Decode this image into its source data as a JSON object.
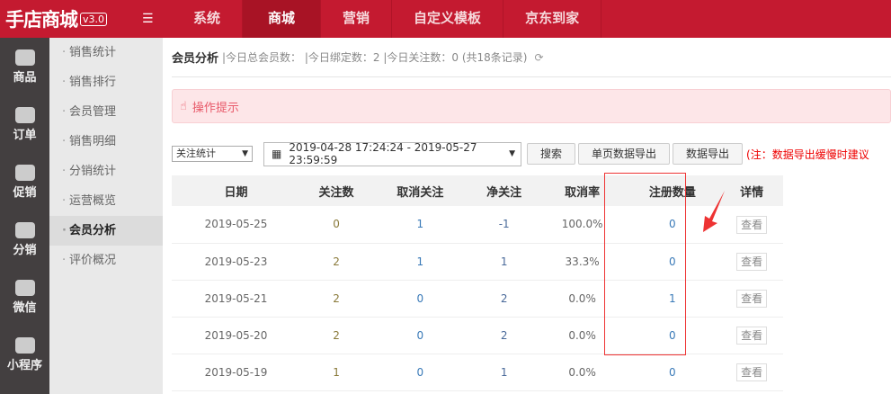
{
  "app": {
    "logo": "手店商城",
    "version": "v3.0"
  },
  "topnav": [
    "系统",
    "商城",
    "营销",
    "自定义模板",
    "京东到家"
  ],
  "topnav_active": 1,
  "sidebar": [
    {
      "label": "商品",
      "icon": "shopping-bag-icon"
    },
    {
      "label": "订单",
      "icon": "basket-icon"
    },
    {
      "label": "促销",
      "icon": "sale-badge-icon"
    },
    {
      "label": "分销",
      "icon": "user-pen-icon"
    },
    {
      "label": "微信",
      "icon": "cash-register-icon"
    },
    {
      "label": "小程序",
      "icon": "pie-chart-icon"
    }
  ],
  "submenu": [
    "销售统计",
    "销售排行",
    "会员管理",
    "销售明细",
    "分销统计",
    "运营概览",
    "会员分析",
    "评价概况"
  ],
  "submenu_active": 6,
  "header": {
    "title": "会员分析",
    "stats": "|今日总会员数： |今日绑定数：2 |今日关注数：0 (共18条记录)"
  },
  "tip": "操作提示",
  "filters": {
    "type": "关注统计",
    "date_range": "2019-04-28 17:24:24 - 2019-05-27 23:59:59",
    "search": "搜索",
    "export_page": "单页数据导出",
    "export": "数据导出",
    "note": "(注：数据导出缓慢时建议"
  },
  "table": {
    "headers": [
      "日期",
      "关注数",
      "取消关注",
      "净关注",
      "取消率",
      "注册数量",
      "详情"
    ],
    "rows": [
      [
        "2019-05-25",
        "0",
        "1",
        "-1",
        "100.0%",
        "0",
        "查看"
      ],
      [
        "2019-05-23",
        "2",
        "1",
        "1",
        "33.3%",
        "0",
        "查看"
      ],
      [
        "2019-05-21",
        "2",
        "0",
        "2",
        "0.0%",
        "1",
        "查看"
      ],
      [
        "2019-05-20",
        "2",
        "0",
        "2",
        "0.0%",
        "0",
        "查看"
      ],
      [
        "2019-05-19",
        "1",
        "0",
        "1",
        "0.0%",
        "0",
        "查看"
      ]
    ]
  },
  "colors": {
    "brand": "#c41a30",
    "highlight": "#e33333"
  }
}
